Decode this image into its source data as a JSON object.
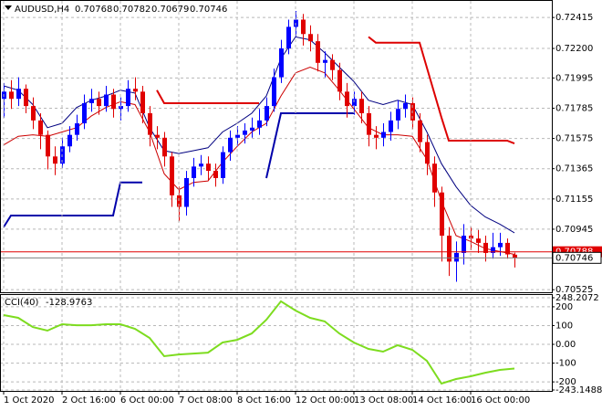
{
  "chart_data": [
    {
      "type": "candlestick",
      "symbol": "AUDUSD,H4",
      "open": [
        0.7185,
        0.719,
        0.7185,
        0.7192,
        0.718,
        0.717,
        0.716,
        0.7145,
        0.714,
        0.7152,
        0.716,
        0.7168,
        0.7182,
        0.7185,
        0.718,
        0.7188,
        0.7178,
        0.718,
        0.7192,
        0.719,
        0.7175,
        0.716,
        0.7158,
        0.7145,
        0.7118,
        0.711,
        0.713,
        0.7138,
        0.714,
        0.7135,
        0.713,
        0.7148,
        0.7158,
        0.716,
        0.7163,
        0.7165,
        0.717,
        0.718,
        0.72,
        0.722,
        0.7235,
        0.724,
        0.723,
        0.7225,
        0.721,
        0.7212,
        0.7205,
        0.719,
        0.718,
        0.7185,
        0.7175,
        0.716,
        0.7158,
        0.7162,
        0.717,
        0.7178,
        0.7182,
        0.717,
        0.7155,
        0.714,
        0.712,
        0.709,
        0.7072,
        0.7078,
        0.709,
        0.7088,
        0.7085,
        0.7078,
        0.7082,
        0.7085,
        0.70768
      ],
      "high": [
        0.7196,
        0.7198,
        0.72,
        0.7195,
        0.7186,
        0.7175,
        0.7163,
        0.7152,
        0.7158,
        0.7166,
        0.7174,
        0.7188,
        0.7192,
        0.719,
        0.7194,
        0.7192,
        0.7186,
        0.7198,
        0.72,
        0.7194,
        0.718,
        0.7166,
        0.7162,
        0.7148,
        0.7124,
        0.7135,
        0.7144,
        0.7146,
        0.7145,
        0.714,
        0.7152,
        0.7163,
        0.7166,
        0.7168,
        0.7172,
        0.7178,
        0.7186,
        0.7206,
        0.7226,
        0.724,
        0.7246,
        0.7244,
        0.7236,
        0.723,
        0.7218,
        0.7216,
        0.721,
        0.7196,
        0.719,
        0.719,
        0.718,
        0.7166,
        0.7168,
        0.7176,
        0.7184,
        0.7188,
        0.7186,
        0.7175,
        0.716,
        0.7145,
        0.7124,
        0.7096,
        0.7086,
        0.7098,
        0.7096,
        0.7094,
        0.709,
        0.7092,
        0.7092,
        0.7088,
        0.70782
      ],
      "low": [
        0.7172,
        0.7178,
        0.718,
        0.7175,
        0.7164,
        0.715,
        0.7136,
        0.7132,
        0.7137,
        0.7148,
        0.7156,
        0.7164,
        0.7176,
        0.7174,
        0.7176,
        0.7172,
        0.717,
        0.7176,
        0.7184,
        0.7168,
        0.7152,
        0.715,
        0.7138,
        0.711,
        0.71,
        0.7104,
        0.7124,
        0.7132,
        0.7128,
        0.7124,
        0.7126,
        0.7142,
        0.7152,
        0.7154,
        0.7158,
        0.716,
        0.7166,
        0.7176,
        0.7196,
        0.7216,
        0.7228,
        0.7222,
        0.7218,
        0.7204,
        0.72,
        0.7198,
        0.7184,
        0.7172,
        0.7174,
        0.7168,
        0.7152,
        0.715,
        0.7152,
        0.7156,
        0.7164,
        0.7172,
        0.7164,
        0.7148,
        0.7132,
        0.711,
        0.7072,
        0.7062,
        0.7058,
        0.707,
        0.708,
        0.7078,
        0.7072,
        0.7074,
        0.7076,
        0.7074,
        0.70679
      ],
      "close": [
        0.719,
        0.7185,
        0.7192,
        0.718,
        0.717,
        0.716,
        0.7145,
        0.714,
        0.7152,
        0.716,
        0.7168,
        0.7182,
        0.7185,
        0.718,
        0.7188,
        0.7178,
        0.718,
        0.7192,
        0.719,
        0.7175,
        0.716,
        0.7158,
        0.7145,
        0.7118,
        0.711,
        0.713,
        0.7138,
        0.714,
        0.7135,
        0.713,
        0.7148,
        0.7158,
        0.716,
        0.7163,
        0.7165,
        0.717,
        0.718,
        0.72,
        0.722,
        0.7235,
        0.724,
        0.723,
        0.7225,
        0.721,
        0.7212,
        0.7205,
        0.719,
        0.718,
        0.7185,
        0.7175,
        0.716,
        0.7158,
        0.7162,
        0.717,
        0.7178,
        0.7182,
        0.717,
        0.7155,
        0.714,
        0.712,
        0.709,
        0.7072,
        0.7078,
        0.709,
        0.7088,
        0.7085,
        0.7078,
        0.7082,
        0.7085,
        0.7077,
        0.70746
      ],
      "up_color": "#0000ff",
      "down_color": "#e00000",
      "overlays": [
        {
          "color": "#000080",
          "x": [
            0,
            2,
            4,
            6,
            8,
            10,
            12,
            14,
            16,
            18,
            20,
            22,
            24,
            26,
            28,
            30,
            32,
            34,
            36,
            38,
            40,
            42,
            44,
            46,
            48,
            50,
            52,
            54,
            56,
            58,
            60,
            62,
            64,
            66,
            68,
            70
          ],
          "values": [
            0.7194,
            0.7191,
            0.7181,
            0.7165,
            0.7168,
            0.7179,
            0.7184,
            0.7187,
            0.7191,
            0.7189,
            0.7165,
            0.7149,
            0.7147,
            0.7149,
            0.7151,
            0.7162,
            0.7168,
            0.7175,
            0.7187,
            0.7213,
            0.7228,
            0.7226,
            0.7217,
            0.7207,
            0.7197,
            0.7184,
            0.7181,
            0.7184,
            0.7181,
            0.7162,
            0.714,
            0.7124,
            0.7111,
            0.7103,
            0.7098,
            0.7092
          ]
        },
        {
          "color": "#cc0000",
          "x": [
            0,
            2,
            4,
            6,
            8,
            10,
            12,
            14,
            16,
            18,
            20,
            22,
            24,
            26,
            28,
            30,
            32,
            34,
            36,
            38,
            40,
            42,
            44,
            46,
            48,
            50,
            52,
            54,
            56,
            58,
            60,
            62,
            64,
            66,
            68,
            70
          ],
          "values": [
            0.7153,
            0.7159,
            0.716,
            0.7159,
            0.7162,
            0.7165,
            0.7173,
            0.7179,
            0.7183,
            0.7181,
            0.7162,
            0.7133,
            0.7122,
            0.7127,
            0.7128,
            0.7141,
            0.7152,
            0.7162,
            0.7168,
            0.7187,
            0.7203,
            0.7207,
            0.7203,
            0.7191,
            0.7178,
            0.7165,
            0.716,
            0.716,
            0.7159,
            0.7143,
            0.7114,
            0.709,
            0.7086,
            0.7081,
            0.7079,
            0.7077
          ]
        },
        {
          "color": "#dd0000",
          "width": 2,
          "x": [
            21,
            22,
            35,
            36,
            50,
            51,
            57,
            60,
            61,
            69,
            70
          ],
          "values": [
            0.7191,
            0.7182,
            0.7182,
            null,
            0.7228,
            0.7224,
            0.7224,
            0.7172,
            0.7156,
            0.7156,
            0.7154
          ]
        },
        {
          "color": "#0000aa",
          "width": 2,
          "x": [
            0,
            1,
            15,
            16,
            19,
            20,
            36,
            38,
            48
          ],
          "values": [
            0.7096,
            0.7104,
            0.7104,
            0.7127,
            0.7127,
            null,
            0.713,
            0.7175,
            0.7175
          ]
        }
      ],
      "ask_line": 0.70788,
      "bid_line": 0.70746,
      "xlim": [
        -0.5,
        75.125
      ],
      "ylim": [
        0.70507,
        0.7253
      ],
      "yticks": [
        0.72415,
        {
          "value": 0.722,
          "label": "0.72200"
        },
        0.71995,
        0.71785,
        0.71575,
        0.71365,
        0.71155,
        0.70945,
        0.70525
      ],
      "grid": true
    },
    {
      "type": "line",
      "name": "CCI(40)",
      "color": "#7ddc1f",
      "x": [
        0,
        2,
        4,
        6,
        8,
        10,
        12,
        14,
        16,
        18,
        20,
        22,
        24,
        26,
        28,
        30,
        32,
        34,
        36,
        38,
        40,
        42,
        44,
        46,
        48,
        50,
        52,
        54,
        56,
        58,
        60,
        62,
        64,
        66,
        68,
        70
      ],
      "values": [
        156,
        141,
        92,
        73,
        107,
        102,
        102,
        107,
        107,
        83,
        34,
        -63,
        -54,
        -49,
        -44,
        10,
        24,
        58,
        131,
        229,
        180,
        141,
        122,
        58,
        10,
        -24,
        -39,
        -5,
        -29,
        -88,
        -209,
        -185,
        -170,
        -151,
        -136,
        -128.9763
      ],
      "xlim": [
        -0.5,
        75.125
      ],
      "ylim": [
        -243.1488,
        248.2072
      ],
      "yticks": [
        248.2072,
        200,
        100,
        {
          "value": 0,
          "label": "0.00"
        },
        -100,
        -200,
        -243.1488
      ],
      "xticks": [
        {
          "value": 0,
          "label": "1 Oct 2020"
        },
        {
          "value": 8,
          "label": "2 Oct 16:00"
        },
        {
          "value": 16,
          "label": "6 Oct 00:00"
        },
        {
          "value": 24,
          "label": "7 Oct 08:00"
        },
        {
          "value": 32,
          "label": "8 Oct 16:00"
        },
        {
          "value": 40,
          "label": "12 Oct 00:00"
        },
        {
          "value": 48,
          "label": "13 Oct 08:00"
        },
        {
          "value": 56,
          "label": "14 Oct 16:00"
        },
        {
          "value": 64,
          "label": "16 Oct 00:00"
        }
      ],
      "grid": true
    }
  ]
}
